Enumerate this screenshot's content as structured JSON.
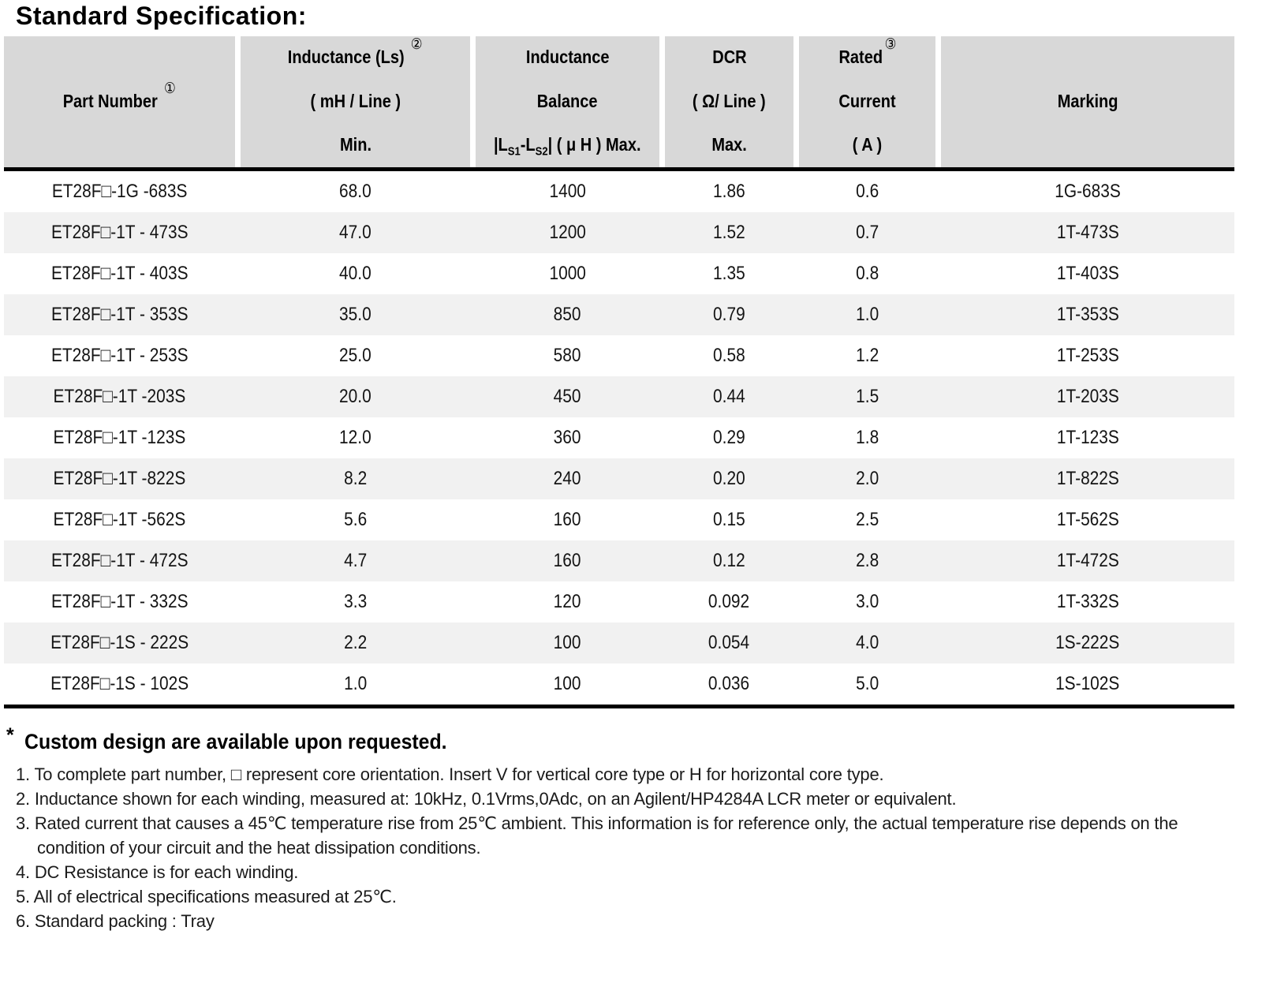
{
  "page": {
    "title": "Standard Specification:"
  },
  "colors": {
    "header_bg": "#d8d8d8",
    "row_alt_bg": "#f1f1f1",
    "border": "#000000"
  },
  "table": {
    "header": {
      "part_number": {
        "label": "Part Number",
        "note_ref": "①"
      },
      "inductance": {
        "l1": "Inductance (Ls)",
        "note_ref": "②",
        "l2": "( mH / Line )",
        "l3": "Min."
      },
      "balance": {
        "l1": "Inductance",
        "l2": "Balance",
        "l3_a": "|L",
        "l3_sub1": "S1",
        "l3_b": "-L",
        "l3_sub2": "S2",
        "l3_c": "| ( μ H ) Max."
      },
      "dcr": {
        "l1": "DCR",
        "l2": "( Ω/ Line )",
        "l3": "Max."
      },
      "rated": {
        "l1": "Rated",
        "note_ref": "③",
        "l2": "Current",
        "l3": "( A )"
      },
      "marking": {
        "label": "Marking"
      }
    },
    "rows": [
      {
        "part": "ET28F□-1G -683S",
        "inductance_min": "68.0",
        "balance_max": "1400",
        "dcr_max": "1.86",
        "rated_current": "0.6",
        "marking": "1G-683S"
      },
      {
        "part": "ET28F□-1T - 473S",
        "inductance_min": "47.0",
        "balance_max": "1200",
        "dcr_max": "1.52",
        "rated_current": "0.7",
        "marking": "1T-473S"
      },
      {
        "part": "ET28F□-1T - 403S",
        "inductance_min": "40.0",
        "balance_max": "1000",
        "dcr_max": "1.35",
        "rated_current": "0.8",
        "marking": "1T-403S"
      },
      {
        "part": "ET28F□-1T - 353S",
        "inductance_min": "35.0",
        "balance_max": "850",
        "dcr_max": "0.79",
        "rated_current": "1.0",
        "marking": "1T-353S"
      },
      {
        "part": "ET28F□-1T - 253S",
        "inductance_min": "25.0",
        "balance_max": "580",
        "dcr_max": "0.58",
        "rated_current": "1.2",
        "marking": "1T-253S"
      },
      {
        "part": "ET28F□-1T -203S",
        "inductance_min": "20.0",
        "balance_max": "450",
        "dcr_max": "0.44",
        "rated_current": "1.5",
        "marking": "1T-203S"
      },
      {
        "part": "ET28F□-1T -123S",
        "inductance_min": "12.0",
        "balance_max": "360",
        "dcr_max": "0.29",
        "rated_current": "1.8",
        "marking": "1T-123S"
      },
      {
        "part": "ET28F□-1T -822S",
        "inductance_min": "8.2",
        "balance_max": "240",
        "dcr_max": "0.20",
        "rated_current": "2.0",
        "marking": "1T-822S"
      },
      {
        "part": "ET28F□-1T -562S",
        "inductance_min": "5.6",
        "balance_max": "160",
        "dcr_max": "0.15",
        "rated_current": "2.5",
        "marking": "1T-562S"
      },
      {
        "part": "ET28F□-1T - 472S",
        "inductance_min": "4.7",
        "balance_max": "160",
        "dcr_max": "0.12",
        "rated_current": "2.8",
        "marking": "1T-472S"
      },
      {
        "part": "ET28F□-1T - 332S",
        "inductance_min": "3.3",
        "balance_max": "120",
        "dcr_max": "0.092",
        "rated_current": "3.0",
        "marking": "1T-332S"
      },
      {
        "part": "ET28F□-1S - 222S",
        "inductance_min": "2.2",
        "balance_max": "100",
        "dcr_max": "0.054",
        "rated_current": "4.0",
        "marking": "1S-222S"
      },
      {
        "part": "ET28F□-1S - 102S",
        "inductance_min": "1.0",
        "balance_max": "100",
        "dcr_max": "0.036",
        "rated_current": "5.0",
        "marking": "1S-102S"
      }
    ]
  },
  "footer": {
    "custom_star": "*",
    "custom_note": "Custom design are available upon requested.",
    "notes": [
      "1. To complete part number, □ represent core orientation. Insert V for vertical core type or H for horizontal core type.",
      "2. Inductance shown for each winding, measured at: 10kHz, 0.1Vrms,0Adc, on an Agilent/HP4284A LCR meter or equivalent.",
      "3. Rated current that causes a 45℃ temperature rise from 25℃ ambient. This information is for reference only,  the actual temperature rise depends on the condition of your circuit and the heat dissipation conditions.",
      "4. DC Resistance is for each winding.",
      "5. All of electrical specifications measured at 25℃.",
      "6. Standard packing : Tray"
    ]
  }
}
